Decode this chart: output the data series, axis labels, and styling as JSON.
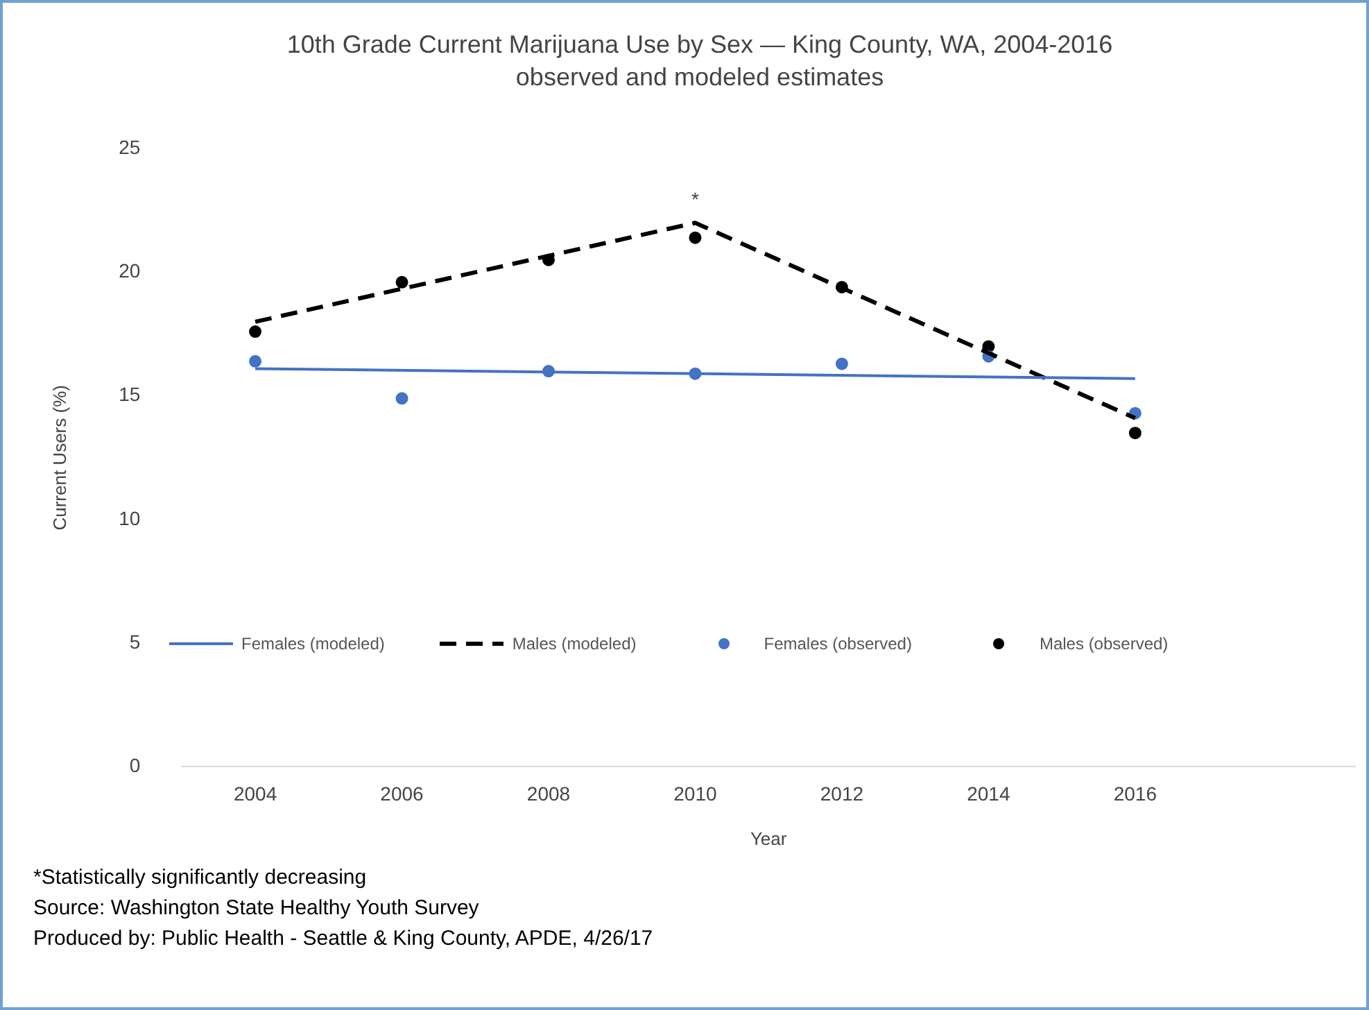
{
  "chart_data": {
    "type": "line",
    "title": "10th Grade Current Marijuana Use by Sex — King County, WA, 2004-2016",
    "subtitle": "observed and modeled estimates",
    "xlabel": "Year",
    "ylabel": "Current Users (%)",
    "xlim": [
      2003,
      2019
    ],
    "xticks": [
      2004,
      2006,
      2008,
      2010,
      2012,
      2014,
      2016
    ],
    "ylim": [
      0,
      25
    ],
    "yticks": [
      0,
      5,
      10,
      15,
      20,
      25
    ],
    "grid": false,
    "legend": "bottom",
    "series": [
      {
        "type": "line",
        "name": "Females (modeled)",
        "color": "#4472c4",
        "line_style": "solid",
        "marker": "none",
        "x": [
          2004,
          2016
        ],
        "values": [
          16.1,
          15.7
        ]
      },
      {
        "type": "line",
        "name": "Males (modeled)",
        "color": "#000000",
        "line_style": "dashed",
        "marker": "none",
        "x": [
          2004,
          2010,
          2016
        ],
        "values": [
          18.0,
          22.0,
          14.1
        ]
      },
      {
        "type": "scatter",
        "name": "Females (observed)",
        "color": "#4472c4",
        "marker": "circle",
        "x": [
          2004,
          2006,
          2008,
          2010,
          2012,
          2014,
          2016
        ],
        "values": [
          16.4,
          14.9,
          16.0,
          15.9,
          16.3,
          16.6,
          14.3
        ]
      },
      {
        "type": "scatter",
        "name": "Males (observed)",
        "color": "#000000",
        "marker": "circle",
        "x": [
          2004,
          2006,
          2008,
          2010,
          2012,
          2014,
          2016
        ],
        "values": [
          17.6,
          19.6,
          20.5,
          21.4,
          19.4,
          17.0,
          13.5
        ]
      }
    ],
    "annotations": [
      {
        "text": "*",
        "x": 2010,
        "y": 22.0
      },
      "*Statistically significantly decreasing",
      "Source: Washington State Healthy Youth Survey",
      "Produced by: Public Health - Seattle & King County, APDE, 4/26/17"
    ]
  }
}
